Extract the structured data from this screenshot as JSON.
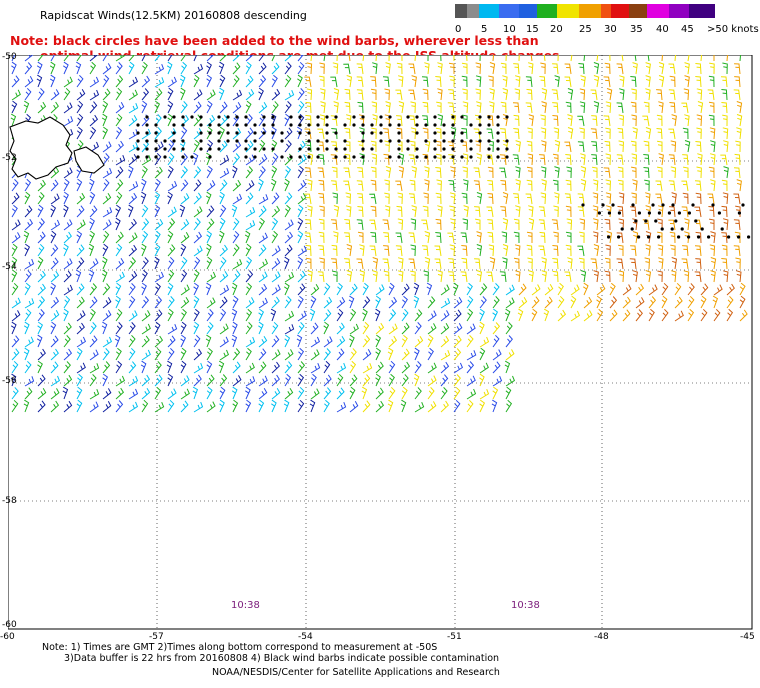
{
  "header": {
    "title": "Rapidscat Winds(12.5KM) 20160808 descending",
    "note_line1": "Note: black circles have been added to the wind barbs, wherever less than",
    "note_line2": "optimal wind retrieval conditions are met due to the ISS altitude changes."
  },
  "scale": {
    "units": ">50 knots",
    "labels": [
      "0",
      "5",
      "10",
      "15",
      "20",
      "25",
      "30",
      "35",
      "40",
      "45"
    ],
    "colors": [
      "#555555",
      "#8c8c8c",
      "#00b8f0",
      "#3a6cf0",
      "#20b020",
      "#f0e400",
      "#f0a000",
      "#f03010",
      "#d01010",
      "#704010",
      "#e000e0",
      "#9000c0",
      "#400080"
    ]
  },
  "map": {
    "lat_labels": [
      "-50",
      "-52",
      "-54",
      "-56",
      "-58",
      "-60"
    ],
    "lon_labels": [
      "-60",
      "-57",
      "-54",
      "-51",
      "-48",
      "-45"
    ],
    "time_labels": [
      "10:38",
      "10:38"
    ]
  },
  "footer": {
    "line1": "Note: 1) Times are GMT 2)Times along bottom correspond to measurement at -50S",
    "line2": "3)Data buffer is 22 hrs from 20160808 4) Black wind barbs indicate possible contamination",
    "line3": "NOAA/NESDIS/Center for Satellite Applications and Research"
  }
}
